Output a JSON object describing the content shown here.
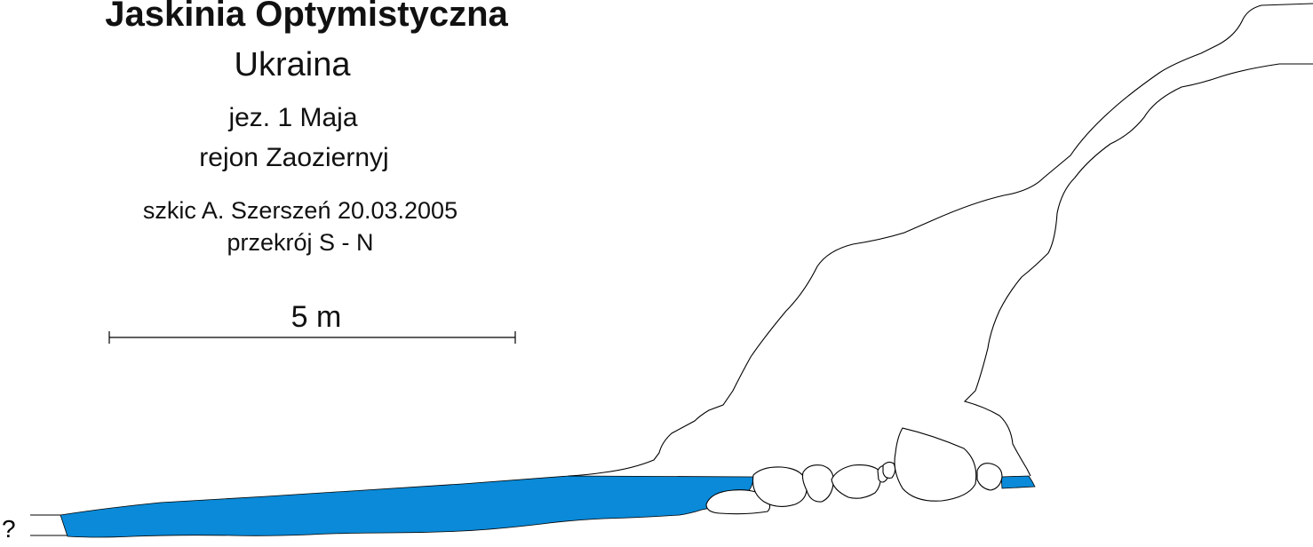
{
  "header": {
    "title": "Jaskinia Optymistyczna",
    "country": "Ukraina",
    "lake": "jez. 1 Maja",
    "region": "rejon Zaoziernyj",
    "author_line": "szkic A. Szerszeń  20.03.2005",
    "section_line": "przekrój S - N"
  },
  "scale_bar": {
    "label": "5 m"
  },
  "unknown_marker": "?",
  "colors": {
    "water": "#0a8ad8",
    "outline": "#000000",
    "background": "#ffffff"
  }
}
